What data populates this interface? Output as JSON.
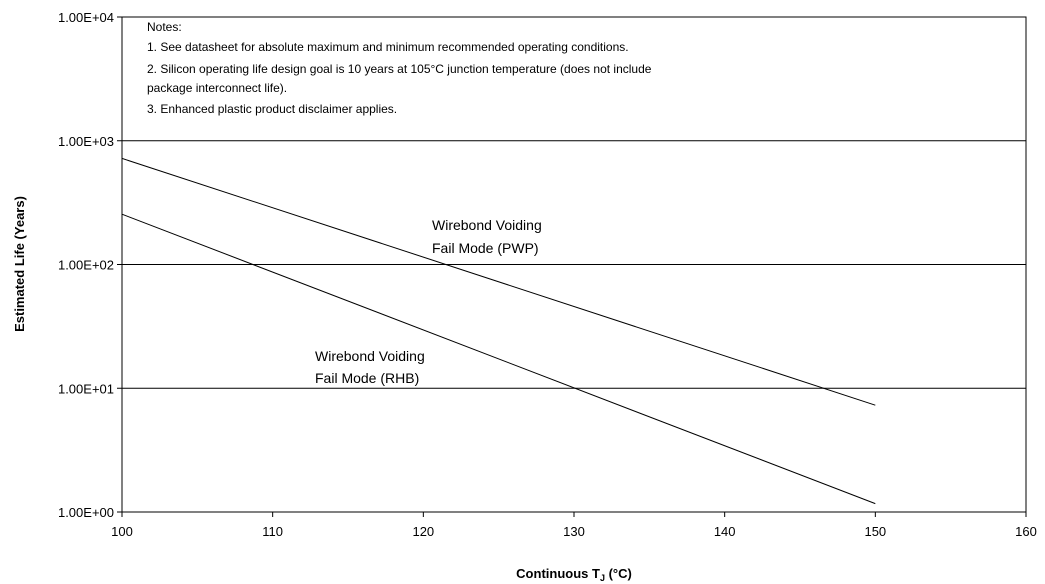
{
  "chart_data": {
    "type": "line",
    "xlabel_main": "Continuous T",
    "xlabel_sub": "J",
    "xlabel_unit": " (°C)",
    "ylabel": "Estimated Life (Years)",
    "xlim": [
      100,
      160
    ],
    "ylim": [
      1,
      10000
    ],
    "yscale": "log",
    "x_ticks": [
      "100",
      "110",
      "120",
      "130",
      "140",
      "150",
      "160"
    ],
    "y_ticks": [
      "1.00E+00",
      "1.00E+01",
      "1.00E+02",
      "1.00E+03",
      "1.00E+04"
    ],
    "grid": "horizontal",
    "series": [
      {
        "x": [
          100,
          150
        ],
        "y": [
          720,
          7.3
        ]
      },
      {
        "x": [
          100,
          150
        ],
        "y": [
          255,
          1.17
        ]
      }
    ],
    "annotations": [
      {
        "lines": [
          "Wirebond Voiding",
          "Fail Mode (PWP)"
        ]
      },
      {
        "lines": [
          "Wirebond Voiding",
          "Fail Mode (RHB)"
        ]
      }
    ],
    "notes": [
      "Notes:",
      "1. See datasheet for absolute maximum and minimum recommended operating conditions.",
      "2. Silicon operating life design goal is 10 years at 105°C junction temperature (does not include",
      "package interconnect life).",
      "3. Enhanced plastic product disclaimer applies."
    ]
  }
}
